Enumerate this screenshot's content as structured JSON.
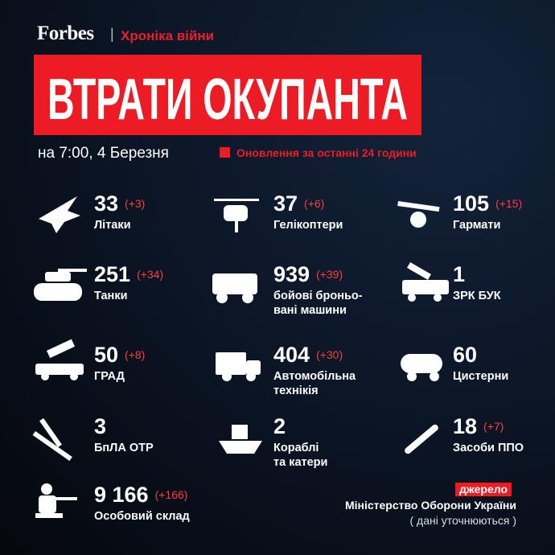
{
  "header": {
    "brand": "Forbes",
    "separator": "|",
    "section": "Хроніка війни",
    "title": "ВТРАТИ ОКУПАНТА",
    "date": "на 7:00, 4 Березня",
    "legend": "Оновлення за останні 24 години"
  },
  "items": [
    {
      "count": "33",
      "delta": "(+3)",
      "label": "Літаки"
    },
    {
      "count": "37",
      "delta": "(+6)",
      "label": "Гелікоптери"
    },
    {
      "count": "105",
      "delta": "(+15)",
      "label": "Гармати"
    },
    {
      "count": "251",
      "delta": "(+34)",
      "label": "Танки"
    },
    {
      "count": "939",
      "delta": "(+39)",
      "label": "бойові броньо-\nвані машини"
    },
    {
      "count": "1",
      "label": "ЗРК БУК"
    },
    {
      "count": "50",
      "delta": "(+8)",
      "label": "ГРАД"
    },
    {
      "count": "404",
      "delta": "(+30)",
      "label": "Автомобільна\nтехнікія"
    },
    {
      "count": "60",
      "label": "Цистерни"
    },
    {
      "count": "3",
      "label": "БпЛА ОТР"
    },
    {
      "count": "2",
      "label": "Кораблі\nта катери"
    },
    {
      "count": "18",
      "delta": "(+7)",
      "label": "Засоби ППО"
    },
    {
      "count": "9 166",
      "delta": "(+166)",
      "label": "Особовий склад"
    }
  ],
  "source": {
    "tag": "джерело",
    "name": "Міністерство Оборони України",
    "note": "( дані уточнюються )"
  }
}
